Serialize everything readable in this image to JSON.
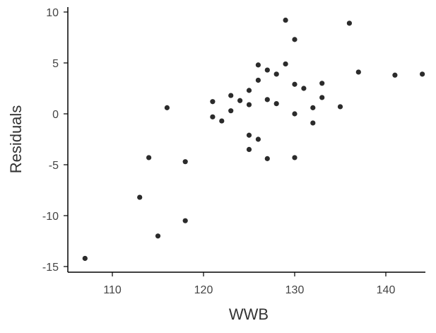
{
  "chart_data": {
    "type": "scatter",
    "title": "",
    "xlabel": "WWB",
    "ylabel": "Residuals",
    "xlim": [
      105,
      147
    ],
    "ylim": [
      -15.5,
      10.5
    ],
    "x_ticks": [
      110,
      120,
      130,
      140
    ],
    "y_ticks": [
      10,
      5,
      0,
      -5,
      -10,
      -15
    ],
    "x_tick_labels": [
      "110",
      "120",
      "130",
      "140"
    ],
    "y_tick_labels": [
      "10",
      "5",
      "0",
      "-5",
      "-10",
      "-15"
    ],
    "grid": false,
    "legend": "none",
    "point_color": "#2b2b2b",
    "axis_color": "#000000",
    "points": [
      {
        "x": 107,
        "y": -14.2
      },
      {
        "x": 113,
        "y": -8.2
      },
      {
        "x": 114,
        "y": -4.3
      },
      {
        "x": 115,
        "y": -12.0
      },
      {
        "x": 116,
        "y": 0.6
      },
      {
        "x": 118,
        "y": -4.7
      },
      {
        "x": 118,
        "y": -10.5
      },
      {
        "x": 121,
        "y": 1.2
      },
      {
        "x": 121,
        "y": -0.3
      },
      {
        "x": 122,
        "y": -0.7
      },
      {
        "x": 123,
        "y": 1.8
      },
      {
        "x": 123,
        "y": 0.3
      },
      {
        "x": 124,
        "y": 1.3
      },
      {
        "x": 125,
        "y": 2.3
      },
      {
        "x": 125,
        "y": 0.9
      },
      {
        "x": 125,
        "y": -2.1
      },
      {
        "x": 125,
        "y": -3.5
      },
      {
        "x": 126,
        "y": 4.8
      },
      {
        "x": 126,
        "y": 3.3
      },
      {
        "x": 126,
        "y": -2.5
      },
      {
        "x": 127,
        "y": 4.3
      },
      {
        "x": 127,
        "y": 1.4
      },
      {
        "x": 127,
        "y": -4.4
      },
      {
        "x": 128,
        "y": 3.9
      },
      {
        "x": 128,
        "y": 1.0
      },
      {
        "x": 129,
        "y": 9.2
      },
      {
        "x": 129,
        "y": 4.9
      },
      {
        "x": 130,
        "y": 7.3
      },
      {
        "x": 130,
        "y": 2.9
      },
      {
        "x": 130,
        "y": 0.0
      },
      {
        "x": 130,
        "y": -4.3
      },
      {
        "x": 131,
        "y": 2.5
      },
      {
        "x": 132,
        "y": 0.6
      },
      {
        "x": 132,
        "y": -0.9
      },
      {
        "x": 133,
        "y": 3.0
      },
      {
        "x": 133,
        "y": 1.6
      },
      {
        "x": 135,
        "y": 0.7
      },
      {
        "x": 136,
        "y": 8.9
      },
      {
        "x": 137,
        "y": 4.1
      },
      {
        "x": 141,
        "y": 3.8
      },
      {
        "x": 144,
        "y": 3.9
      }
    ]
  }
}
